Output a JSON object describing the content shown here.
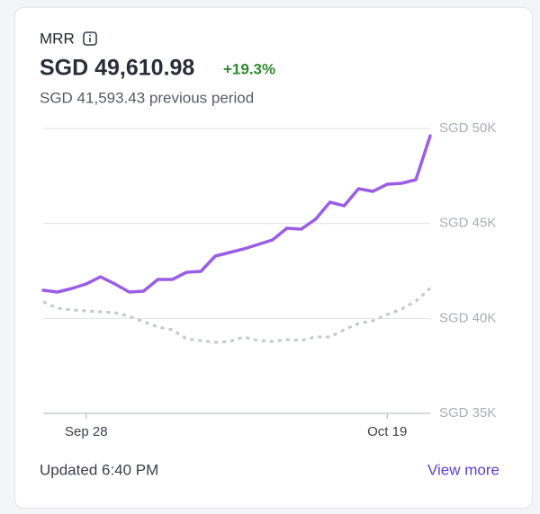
{
  "header": {
    "title": "MRR",
    "value": "SGD 49,610.98",
    "change": "+19.3%",
    "previous": "SGD 41,593.43 previous period"
  },
  "chart_data": {
    "type": "line",
    "categories": [
      null,
      null,
      null,
      "Sep 28",
      null,
      null,
      null,
      null,
      null,
      null,
      null,
      null,
      null,
      null,
      null,
      null,
      null,
      null,
      null,
      null,
      null,
      null,
      null,
      null,
      "Oct 19",
      null,
      null,
      null
    ],
    "series": [
      {
        "color": "#9a5ee6",
        "dashed": false,
        "values": [
          41483,
          41388,
          41577,
          41814,
          42192,
          41814,
          41388,
          41435,
          42050,
          42050,
          42429,
          42476,
          43281,
          43470,
          43660,
          43896,
          44132,
          44748,
          44700,
          45221,
          46120,
          45931,
          46830,
          46688,
          47066,
          47114,
          47303,
          49611
        ]
      },
      {
        "color": "#c3c7ce",
        "dashed": true,
        "values": [
          40868,
          40537,
          40442,
          40394,
          40347,
          40300,
          40110,
          39826,
          39543,
          39401,
          38927,
          38833,
          38738,
          38785,
          39022,
          38833,
          38785,
          38880,
          38833,
          39022,
          39022,
          39401,
          39732,
          39874,
          40205,
          40489,
          40915,
          41593
        ]
      }
    ],
    "ylim": [
      35000,
      50000
    ],
    "yticks": [
      {
        "value": 35000,
        "label": "SGD 35K"
      },
      {
        "value": 40000,
        "label": "SGD 40K"
      },
      {
        "value": 45000,
        "label": "SGD 45K"
      },
      {
        "value": 50000,
        "label": "SGD 50K"
      }
    ],
    "grid": true
  },
  "footer": {
    "updated": "Updated 6:40 PM",
    "link": "View more"
  }
}
